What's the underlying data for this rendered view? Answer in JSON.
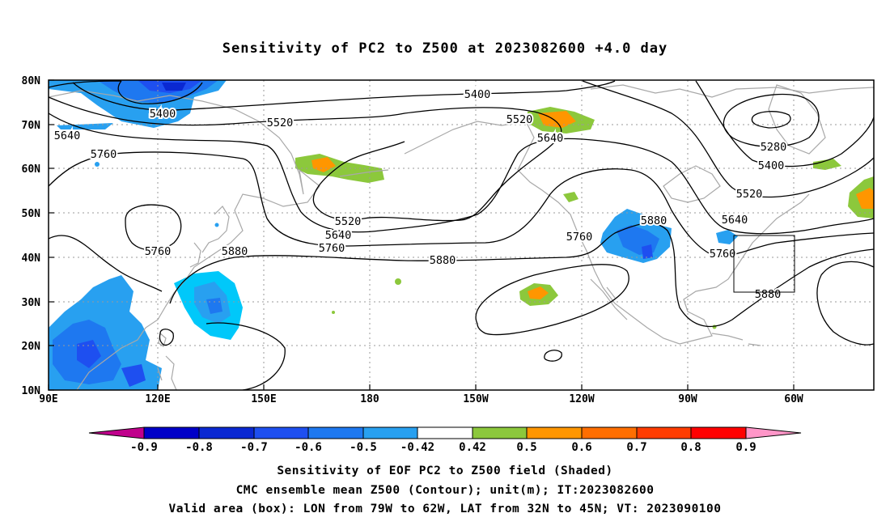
{
  "title": "Sensitivity of PC2 to Z500 at 2023082600 +4.0 day",
  "map": {
    "lat_labels": [
      "80N",
      "70N",
      "60N",
      "50N",
      "40N",
      "30N",
      "20N",
      "10N"
    ],
    "lon_labels": [
      "90E",
      "120E",
      "150E",
      "180",
      "150W",
      "120W",
      "90W",
      "60W"
    ],
    "lon_range_deg_east": [
      90,
      325
    ],
    "lat_range_deg": [
      10,
      80
    ],
    "gridlines": "dotted every 10 degrees",
    "contour_labels": [
      "5400",
      "5400",
      "5520",
      "5520",
      "5520",
      "5520",
      "5640",
      "5640",
      "5640",
      "5640",
      "5760",
      "5760",
      "5760",
      "5760",
      "5760",
      "5880",
      "5880",
      "5880",
      "5880",
      "5280",
      "5400"
    ],
    "valid_box": {
      "lon": [
        "79W",
        "62W"
      ],
      "lat": [
        "32N",
        "45N"
      ]
    },
    "colors": {
      "coast": "#a8a8a8",
      "contour": "#000000"
    }
  },
  "colorbar": {
    "labels": [
      "-0.9",
      "-0.8",
      "-0.7",
      "-0.6",
      "-0.5",
      "-0.42",
      "0.42",
      "0.5",
      "0.6",
      "0.7",
      "0.8",
      "0.9"
    ],
    "colors": [
      "#c0008c",
      "#0000c8",
      "#0a28d2",
      "#1e4ff0",
      "#1e78f0",
      "#28a0f0",
      "#00c8fa",
      "#ffffff",
      "#8cc83c",
      "#ff9600",
      "#ff6e00",
      "#ff3c00",
      "#ff0000",
      "#ff96c8"
    ]
  },
  "footer": {
    "line1": "Sensitivity of EOF PC2 to Z500 field (Shaded)",
    "line2": "CMC ensemble mean Z500 (Contour); unit(m); IT:2023082600",
    "line3": "Valid area (box): LON from 79W to 62W, LAT from 32N to 45N; VT: 2023090100"
  }
}
